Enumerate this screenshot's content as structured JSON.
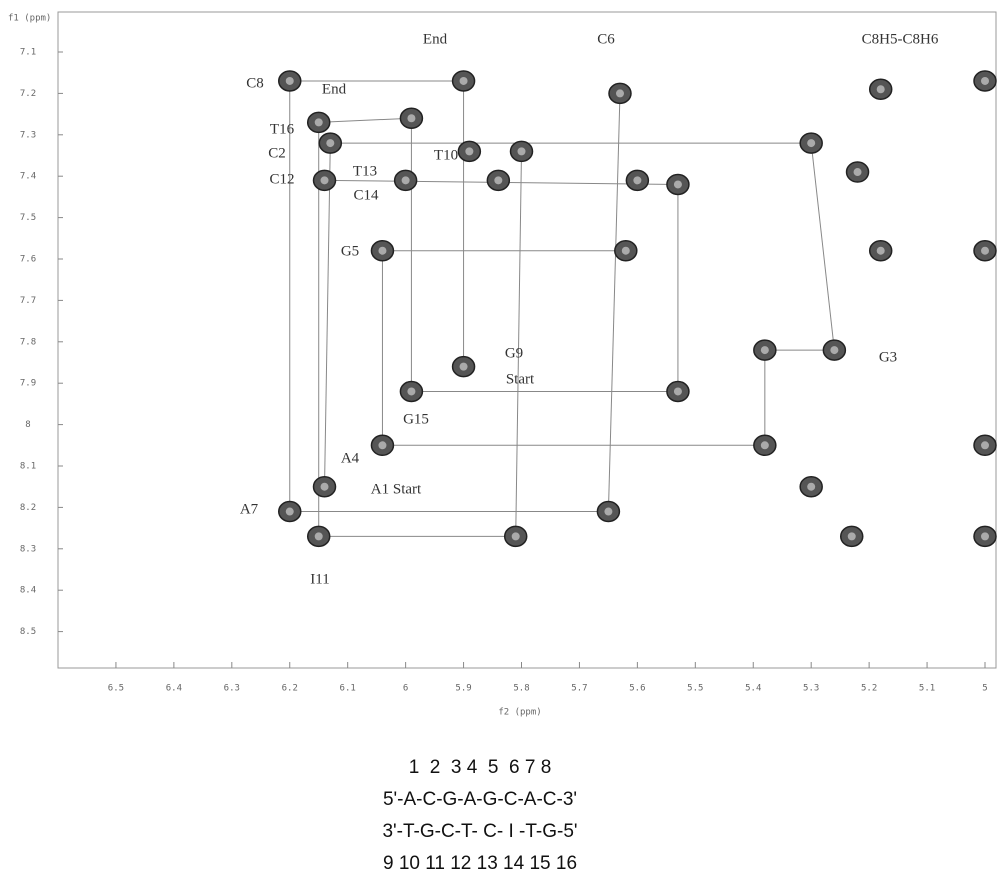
{
  "chart_data": {
    "type": "scatter",
    "x_label": "f2 (ppm)",
    "y_label": "f1 (ppm)",
    "xlim": [
      6.6,
      5.0
    ],
    "ylim": [
      7.0,
      8.6
    ],
    "xticks": [
      6.5,
      6.4,
      6.3,
      6.2,
      6.1,
      6.0,
      5.9,
      5.8,
      5.7,
      5.6,
      5.5,
      5.4,
      5.3,
      5.2,
      5.1,
      5.0
    ],
    "yticks": [
      7.1,
      7.2,
      7.3,
      7.4,
      7.5,
      7.6,
      7.7,
      7.8,
      7.9,
      8.0,
      8.1,
      8.2,
      8.3,
      8.4,
      8.5
    ],
    "color": "#555555",
    "x": [
      6.2,
      5.9,
      5.63,
      6.15,
      5.99,
      6.13,
      5.89,
      5.8,
      6.14,
      6.0,
      5.84,
      5.6,
      5.53,
      5.3,
      5.22,
      5.18,
      5.0,
      6.04,
      5.62,
      5.18,
      5.0,
      5.38,
      5.26,
      5.9,
      5.99,
      5.53,
      6.04,
      5.38,
      5.0,
      6.14,
      5.3,
      6.2,
      5.65,
      6.15,
      5.81,
      5.23,
      5.0
    ],
    "y": [
      7.17,
      7.17,
      7.2,
      7.27,
      7.26,
      7.32,
      7.34,
      7.34,
      7.41,
      7.41,
      7.41,
      7.41,
      7.42,
      7.32,
      7.39,
      7.19,
      7.17,
      7.58,
      7.58,
      7.58,
      7.58,
      7.82,
      7.82,
      7.86,
      7.92,
      7.92,
      8.05,
      8.05,
      8.05,
      8.15,
      8.15,
      8.21,
      8.21,
      8.27,
      8.27,
      8.27,
      8.27
    ],
    "annotations": [
      "End",
      "C6",
      "C8H5-C8H6",
      "C8",
      "End",
      "T16",
      "C2",
      "C12",
      "T13",
      "C14",
      "T10",
      "G5",
      "G9",
      "Start",
      "G15",
      "A4",
      "A1 Start",
      "A7",
      "I11",
      "G3"
    ],
    "sequence": [
      "1  2  3 4  5  6 7 8",
      "5'-A-C-G-A-G-C-A-C-3'",
      "3'-T-G-C-T- C- I -T-G-5'",
      "9 10 11 12 13 14 15 16"
    ]
  }
}
